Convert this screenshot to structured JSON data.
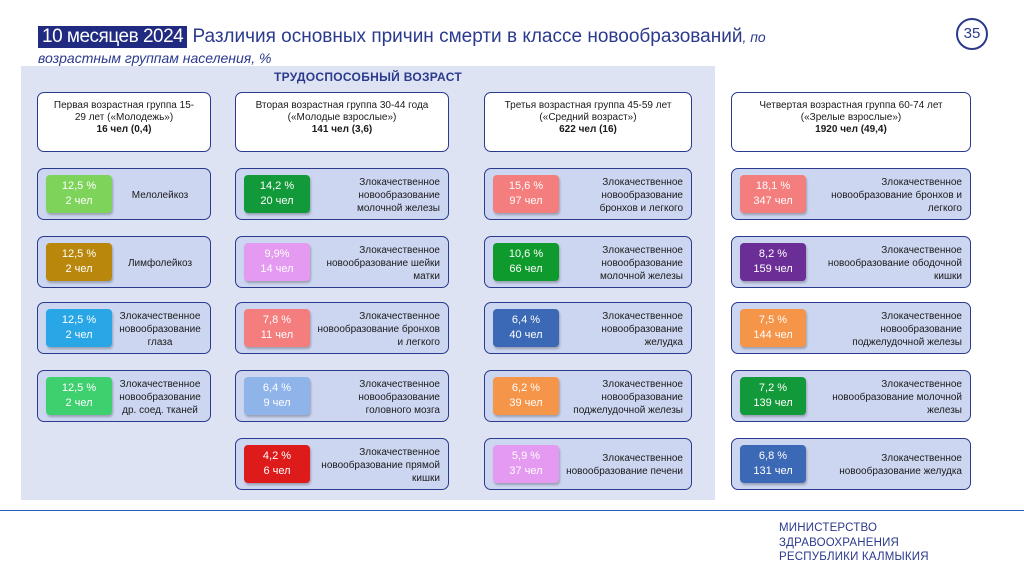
{
  "header": {
    "period": "10 месяцев 2024",
    "title": "Различия основных причин смерти в классе новообразований",
    "title_suffix": ", по",
    "subtitle": "возрастным группам населения, %",
    "page_number": "35"
  },
  "working_age_label": "ТРУДОСПОСОБНЫЙ ВОЗРАСТ",
  "groups": [
    {
      "line1": "Первая возрастная группа 15-",
      "line2": "29 лет («Молодежь»)",
      "count": "16 чел (0,4)",
      "causes": [
        {
          "percent": "12,5 %",
          "people": "2 чел",
          "label": "Мелолейкоз",
          "color": "#7ed35a"
        },
        {
          "percent": "12,5 %",
          "people": "2 чел",
          "label": "Лимфолейкоз",
          "color": "#b8870b"
        },
        {
          "percent": "12,5 %",
          "people": "2 чел",
          "label": "Злокачественное новообразование глаза",
          "color": "#29a6e6"
        },
        {
          "percent": "12,5 %",
          "people": "2 чел",
          "label": "Злокачественное новообразование др. соед. тканей",
          "color": "#3ecf6e"
        }
      ]
    },
    {
      "line1": "Вторая возрастная группа 30-44 года",
      "line2": "(«Молодые взрослые»)",
      "count": "141 чел (3,6)",
      "causes": [
        {
          "percent": "14,2 %",
          "people": "20 чел",
          "label": "Злокачественное новообразование молочной железы",
          "color": "#129a3a"
        },
        {
          "percent": "9,9%",
          "people": "14 чел",
          "label": "Злокачественное новообразование шейки матки",
          "color": "#e49af0"
        },
        {
          "percent": "7,8 %",
          "people": "11 чел",
          "label": "Злокачественное новообразование бронхов и легкого",
          "color": "#f47d7d"
        },
        {
          "percent": "6,4 %",
          "people": "9 чел",
          "label": "Злокачественное новообразование головного мозга",
          "color": "#8fb4ea"
        },
        {
          "percent": "4,2 %",
          "people": "6 чел",
          "label": "Злокачественное новообразование прямой кишки",
          "color": "#de1b1b"
        }
      ]
    },
    {
      "line1": "Третья возрастная группа 45-59 лет",
      "line2": "(«Средний возраст»)",
      "count": "622 чел (16)",
      "causes": [
        {
          "percent": "15,6 %",
          "people": "97 чел",
          "label": "Злокачественное новообразование бронхов и легкого",
          "color": "#f47d7d"
        },
        {
          "percent": "10,6 %",
          "people": "66 чел",
          "label": "Злокачественное новообразование молочной железы",
          "color": "#0f9a2e"
        },
        {
          "percent": "6,4 %",
          "people": "40 чел",
          "label": "Злокачественное новообразование желудка",
          "color": "#3c69b5"
        },
        {
          "percent": "6,2 %",
          "people": "39 чел",
          "label": "Злокачественное новообразование поджелудочной железы",
          "color": "#f5954a"
        },
        {
          "percent": "5,9 %",
          "people": "37 чел",
          "label": "Злокачественное новообразование печени",
          "color": "#e49af0"
        }
      ]
    },
    {
      "line1": "Четвертая возрастная группа 60-74 лет",
      "line2": "(«Зрелые взрослые»)",
      "count": "1920 чел (49,4)",
      "causes": [
        {
          "percent": "18,1 %",
          "people": "347 чел",
          "label": "Злокачественное новообразование бронхов и легкого",
          "color": "#f47d7d"
        },
        {
          "percent": "8,2 %",
          "people": "159 чел",
          "label": "Злокачественное новообразование ободочной кишки",
          "color": "#6a2e96"
        },
        {
          "percent": "7,5 %",
          "people": "144 чел",
          "label": "Злокачественное новообразование поджелудочной железы",
          "color": "#f5954a"
        },
        {
          "percent": "7,2 %",
          "people": "139 чел",
          "label": "Злокачественное новообразование молочной железы",
          "color": "#129a3a"
        },
        {
          "percent": "6,8 %",
          "people": "131 чел",
          "label": "Злокачественное новообразование желудка",
          "color": "#3c69b5"
        }
      ]
    }
  ],
  "footer": {
    "line1": "МИНИСТЕРСТВО",
    "line2": "ЗДРАВООХРАНЕНИЯ",
    "line3": "РЕСПУБЛИКИ КАЛМЫКИЯ"
  }
}
